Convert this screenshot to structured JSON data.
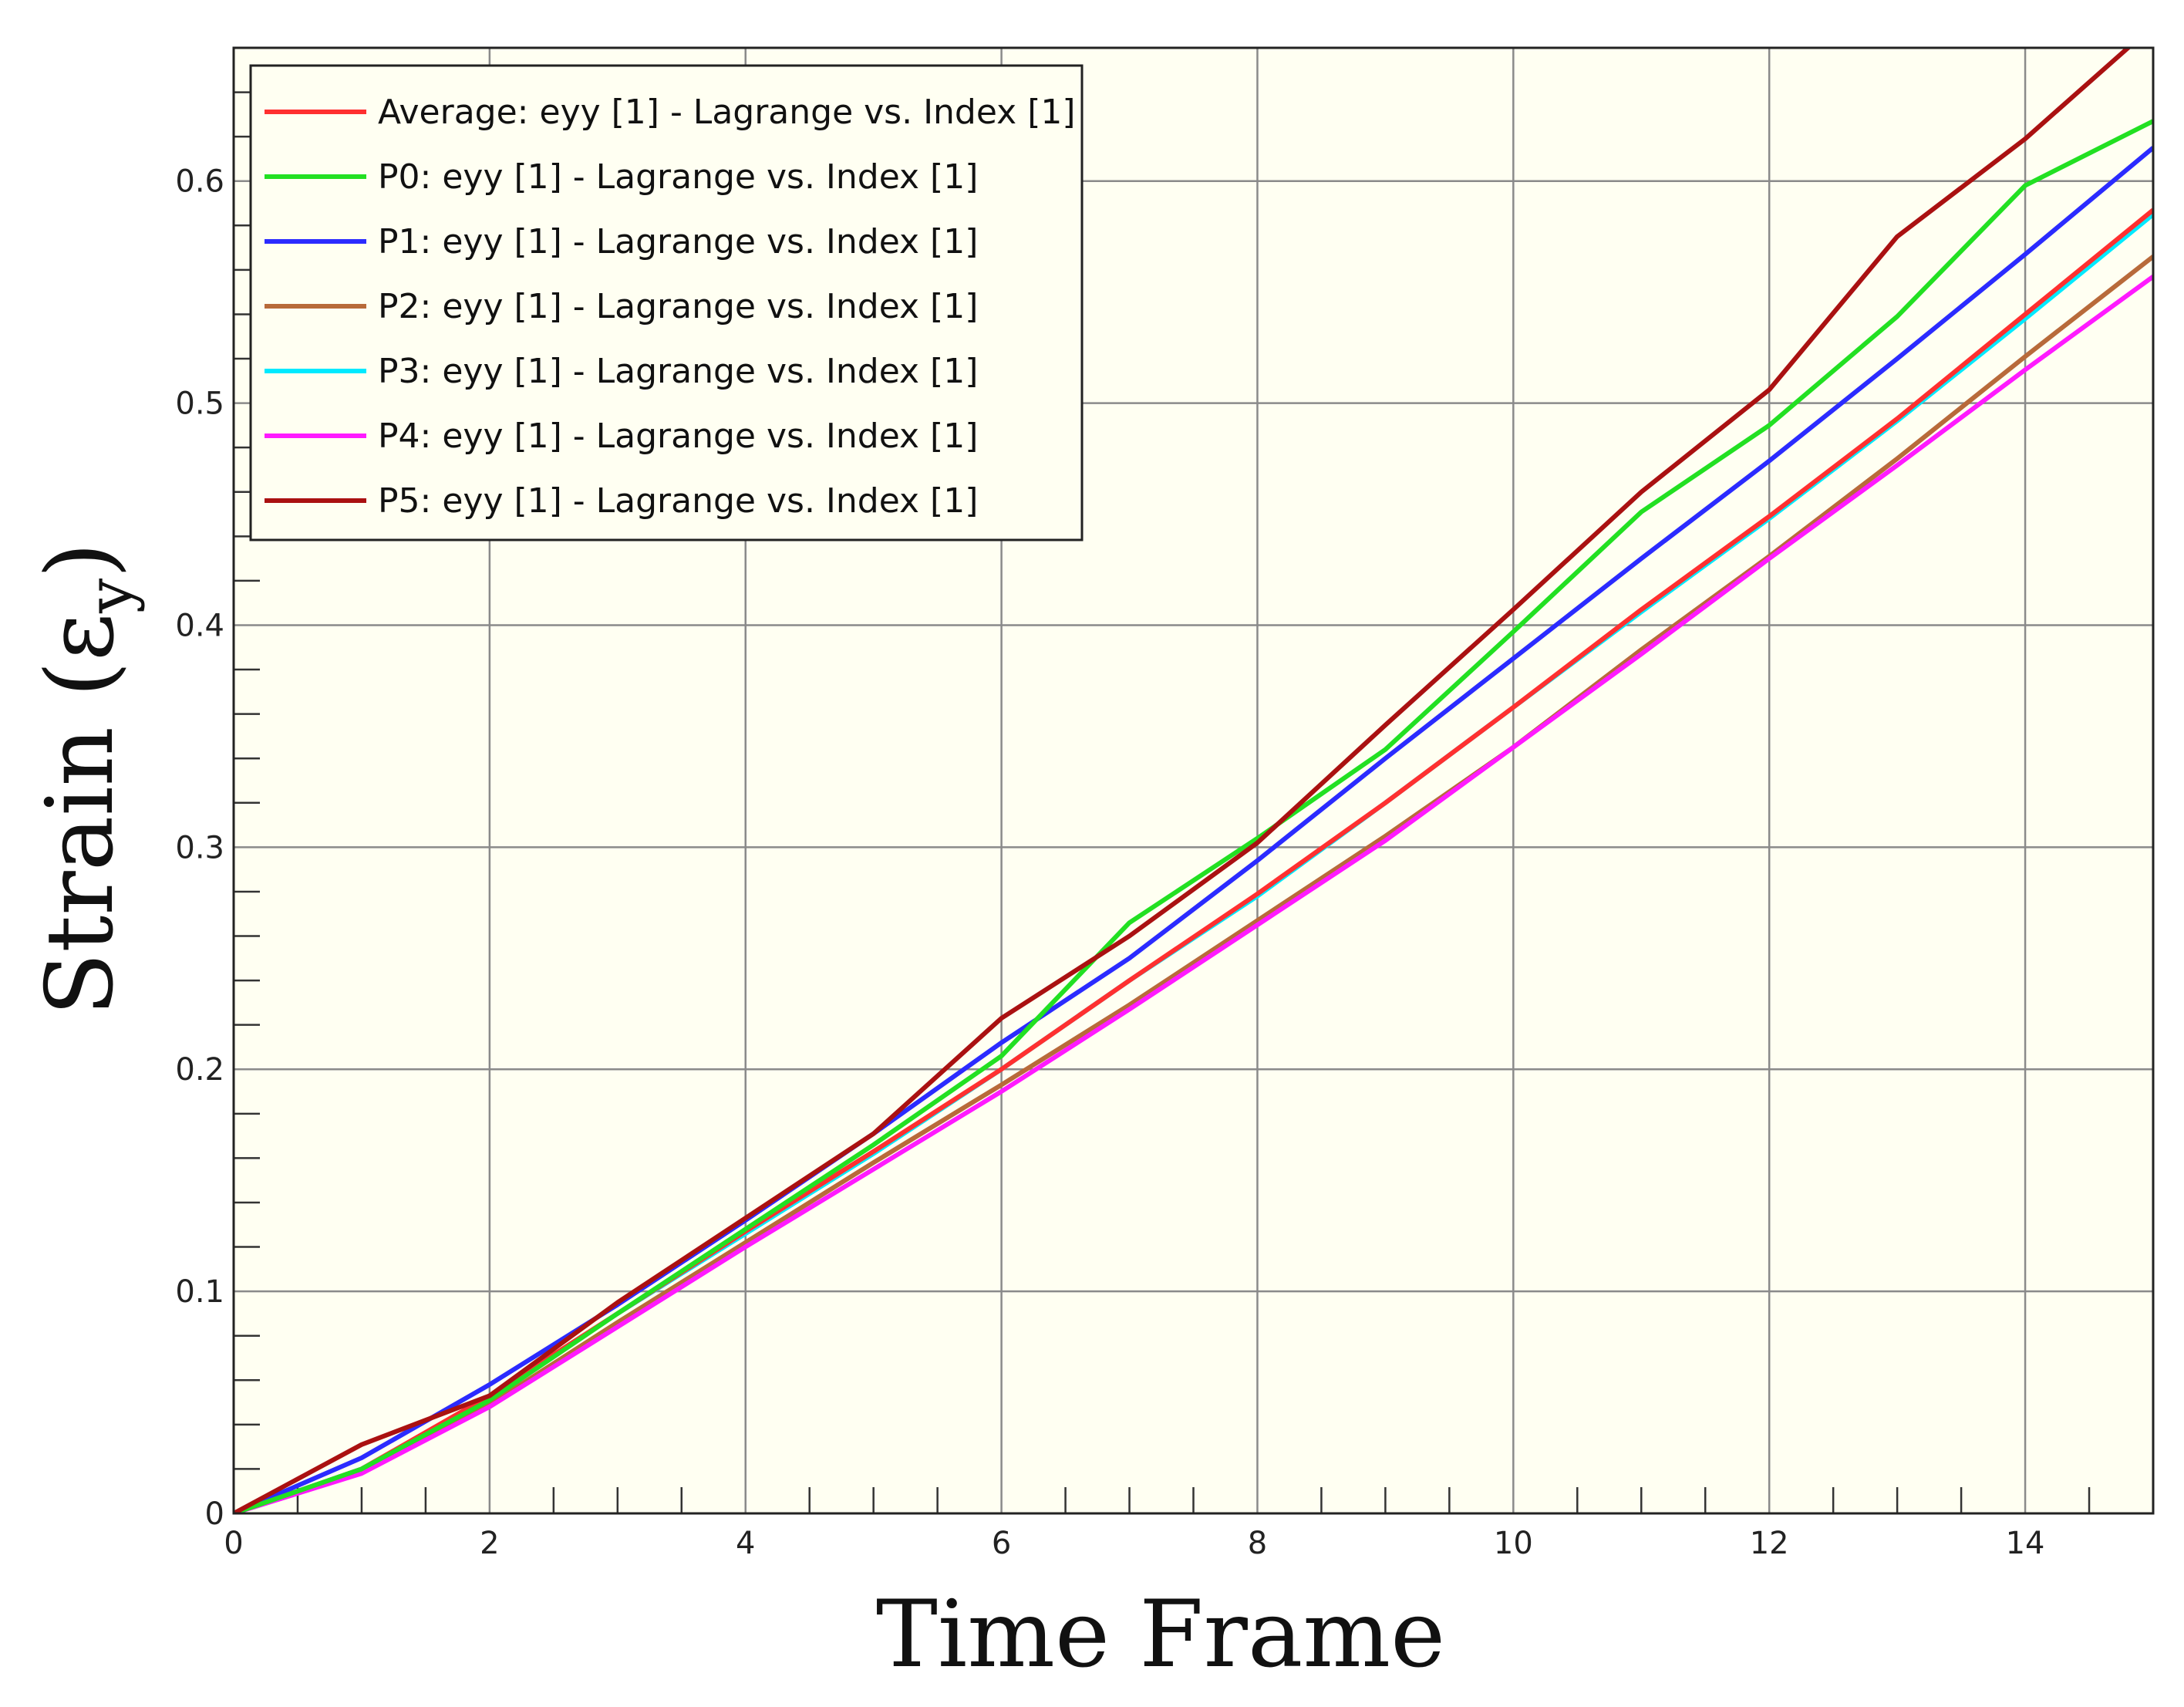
{
  "chart_data": {
    "type": "line",
    "xlabel": "Time Frame",
    "ylabel_main": "Strain (ε",
    "ylabel_sub": "y",
    "ylabel_close": ")",
    "xlim": [
      0,
      15
    ],
    "ylim": [
      0,
      0.66
    ],
    "x_ticks": [
      "0",
      "2",
      "4",
      "6",
      "8",
      "10",
      "12",
      "14"
    ],
    "y_ticks": [
      "0",
      "0.1",
      "0.2",
      "0.3",
      "0.4",
      "0.5",
      "0.6"
    ],
    "grid": true,
    "legend_position": "top-left",
    "colors": {
      "plot_background": "#fffff2",
      "grid": "#8a8a8a"
    },
    "x": [
      0,
      1,
      2,
      3,
      4,
      5,
      6,
      7,
      8,
      9,
      10,
      11,
      12,
      13,
      14,
      15
    ],
    "series": [
      {
        "name": "Average: eyy [1] - Lagrange vs. Index [1]",
        "color": "#ff3030",
        "values": [
          0,
          0.02,
          0.053,
          0.09,
          0.127,
          0.163,
          0.2,
          0.24,
          0.279,
          0.32,
          0.363,
          0.407,
          0.449,
          0.493,
          0.54,
          0.587
        ]
      },
      {
        "name": "P0: eyy [1] - Lagrange vs. Index [1]",
        "color": "#22e022",
        "values": [
          0,
          0.02,
          0.051,
          0.09,
          0.128,
          0.166,
          0.206,
          0.266,
          0.304,
          0.344,
          0.397,
          0.451,
          0.49,
          0.539,
          0.598,
          0.627
        ]
      },
      {
        "name": "P1: eyy [1] - Lagrange vs. Index [1]",
        "color": "#2b2bff",
        "values": [
          0,
          0.025,
          0.058,
          0.094,
          0.132,
          0.171,
          0.212,
          0.25,
          0.294,
          0.34,
          0.385,
          0.43,
          0.474,
          0.52,
          0.567,
          0.615
        ]
      },
      {
        "name": "P2: eyy [1] - Lagrange vs. Index [1]",
        "color": "#b86a3a",
        "values": [
          0,
          0.019,
          0.049,
          0.086,
          0.122,
          0.158,
          0.193,
          0.229,
          0.267,
          0.305,
          0.345,
          0.389,
          0.431,
          0.475,
          0.521,
          0.566
        ]
      },
      {
        "name": "P3: eyy [1] - Lagrange vs. Index [1]",
        "color": "#00eaff",
        "values": [
          0,
          0.02,
          0.052,
          0.09,
          0.126,
          0.162,
          0.2,
          0.24,
          0.278,
          0.32,
          0.363,
          0.406,
          0.448,
          0.492,
          0.538,
          0.585
        ]
      },
      {
        "name": "P4: eyy [1] - Lagrange vs. Index [1]",
        "color": "#ff1aff",
        "values": [
          0,
          0.018,
          0.048,
          0.084,
          0.12,
          0.155,
          0.19,
          0.227,
          0.265,
          0.303,
          0.345,
          0.387,
          0.43,
          0.472,
          0.515,
          0.557
        ]
      },
      {
        "name": "P5: eyy [1] - Lagrange vs. Index [1]",
        "color": "#aa1111",
        "values": [
          0,
          0.031,
          0.053,
          0.095,
          0.133,
          0.171,
          0.223,
          0.26,
          0.302,
          0.355,
          0.407,
          0.46,
          0.506,
          0.575,
          0.619,
          0.67
        ]
      }
    ]
  }
}
